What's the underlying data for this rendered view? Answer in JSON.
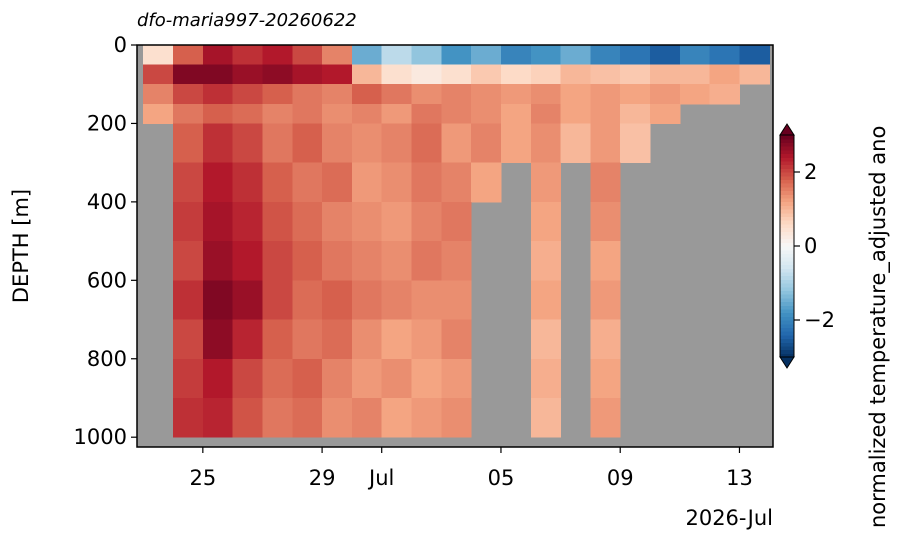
{
  "chart_data": {
    "type": "pcolormesh",
    "title": "dfo-maria997-20260622",
    "ylabel": "DEPTH [m]",
    "xlabel": "2026-Jul",
    "colorbar_label": "normalized temperature_adjusted ano",
    "x_edges": [
      "2026-06-23",
      "2026-06-24",
      "2026-06-25",
      "2026-06-26",
      "2026-06-27",
      "2026-06-28",
      "2026-06-29",
      "2026-06-30",
      "2026-07-01",
      "2026-07-02",
      "2026-07-03",
      "2026-07-04",
      "2026-07-05",
      "2026-07-06",
      "2026-07-07",
      "2026-07-08",
      "2026-07-09",
      "2026-07-10",
      "2026-07-11",
      "2026-07-12",
      "2026-07-13",
      "2026-07-14"
    ],
    "depth_edges": [
      0,
      50,
      100,
      150,
      200,
      300,
      400,
      500,
      600,
      700,
      800,
      900,
      1000
    ],
    "values": [
      [
        0.5,
        1.8,
        2.5,
        2.2,
        2.4,
        2.0,
        1.5,
        -1.5,
        -0.8,
        -1.2,
        -1.8,
        -1.5,
        -2.0,
        -1.8,
        -1.5,
        -2.0,
        -2.2,
        -2.5,
        -2.0,
        -2.2,
        -2.5
      ],
      [
        2.0,
        2.8,
        2.8,
        2.6,
        2.7,
        2.5,
        2.4,
        1.0,
        0.5,
        0.3,
        0.5,
        0.8,
        0.6,
        0.7,
        1.0,
        0.9,
        0.8,
        1.0,
        1.0,
        1.2,
        1.0
      ],
      [
        1.5,
        2.0,
        2.2,
        2.0,
        1.8,
        1.6,
        1.5,
        1.8,
        1.6,
        1.4,
        1.5,
        1.4,
        1.3,
        1.4,
        1.2,
        1.3,
        1.2,
        1.3,
        1.2,
        1.1,
        null
      ],
      [
        1.2,
        1.6,
        1.8,
        1.7,
        1.5,
        1.6,
        1.4,
        1.5,
        1.3,
        1.6,
        1.5,
        1.4,
        1.2,
        1.5,
        1.2,
        1.3,
        1.0,
        1.2,
        null,
        null,
        null
      ],
      [
        null,
        1.8,
        2.2,
        2.0,
        1.6,
        1.8,
        1.5,
        1.4,
        1.5,
        1.7,
        1.3,
        1.5,
        1.2,
        1.4,
        1.0,
        1.3,
        0.9,
        null,
        null,
        null,
        null
      ],
      [
        null,
        2.0,
        2.4,
        2.2,
        1.8,
        1.6,
        1.7,
        1.3,
        1.4,
        1.6,
        1.5,
        1.2,
        null,
        1.3,
        null,
        1.5,
        null,
        null,
        null,
        null,
        null
      ],
      [
        null,
        2.1,
        2.5,
        2.3,
        1.9,
        1.7,
        1.5,
        1.4,
        1.3,
        1.5,
        1.6,
        null,
        null,
        1.2,
        null,
        1.4,
        null,
        null,
        null,
        null,
        null
      ],
      [
        null,
        2.0,
        2.6,
        2.4,
        2.0,
        1.8,
        1.6,
        1.5,
        1.4,
        1.6,
        1.5,
        null,
        null,
        1.1,
        null,
        1.2,
        null,
        null,
        null,
        null,
        null
      ],
      [
        null,
        2.2,
        2.8,
        2.6,
        2.0,
        1.7,
        1.8,
        1.6,
        1.5,
        1.4,
        1.4,
        null,
        null,
        1.2,
        null,
        1.3,
        null,
        null,
        null,
        null,
        null
      ],
      [
        null,
        2.0,
        2.7,
        2.3,
        1.8,
        1.6,
        1.7,
        1.4,
        1.2,
        1.3,
        1.5,
        null,
        null,
        1.0,
        null,
        1.1,
        null,
        null,
        null,
        null,
        null
      ],
      [
        null,
        2.1,
        2.4,
        2.0,
        1.7,
        1.8,
        1.5,
        1.3,
        1.4,
        1.2,
        1.3,
        null,
        null,
        1.1,
        null,
        1.2,
        null,
        null,
        null,
        null,
        null
      ],
      [
        null,
        2.2,
        2.3,
        1.9,
        1.6,
        1.7,
        1.4,
        1.5,
        1.2,
        1.3,
        1.4,
        null,
        null,
        1.0,
        null,
        1.3,
        null,
        null,
        null,
        null,
        null
      ]
    ],
    "xlim": [
      "2026-06-22T19:00",
      "2026-07-14T03:00"
    ],
    "xticks": [
      {
        "value": "2026-06-25",
        "label": "25"
      },
      {
        "value": "2026-06-29",
        "label": "29"
      },
      {
        "value": "2026-07-01",
        "label": "Jul"
      },
      {
        "value": "2026-07-05",
        "label": "05"
      },
      {
        "value": "2026-07-09",
        "label": "09"
      },
      {
        "value": "2026-07-13",
        "label": "13"
      }
    ],
    "ylim": [
      1025,
      0
    ],
    "yticks": [
      0,
      200,
      400,
      600,
      800,
      1000
    ],
    "clim": [
      -3,
      3
    ],
    "cbar_ticks": [
      {
        "value": -2,
        "label": "−2"
      },
      0,
      2
    ],
    "missing_color": "#999999",
    "colormap": [
      "#053061",
      "#2166ac",
      "#4393c3",
      "#92c5de",
      "#d1e5f0",
      "#f7f7f7",
      "#fddbc7",
      "#f4a582",
      "#d6604d",
      "#b2182b",
      "#67001f"
    ]
  }
}
